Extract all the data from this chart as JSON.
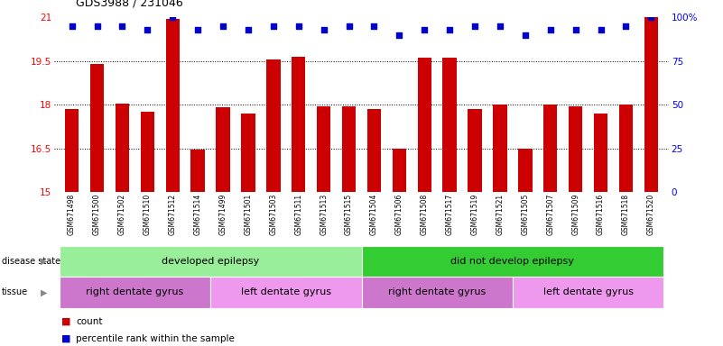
{
  "title": "GDS3988 / 231046",
  "samples": [
    "GSM671498",
    "GSM671500",
    "GSM671502",
    "GSM671510",
    "GSM671512",
    "GSM671514",
    "GSM671499",
    "GSM671501",
    "GSM671503",
    "GSM671511",
    "GSM671513",
    "GSM671515",
    "GSM671504",
    "GSM671506",
    "GSM671508",
    "GSM671517",
    "GSM671519",
    "GSM671521",
    "GSM671505",
    "GSM671507",
    "GSM671509",
    "GSM671516",
    "GSM671518",
    "GSM671520"
  ],
  "bar_values": [
    17.85,
    19.4,
    18.05,
    17.75,
    20.95,
    16.45,
    17.9,
    17.7,
    19.55,
    19.65,
    17.95,
    17.95,
    17.85,
    16.5,
    19.6,
    19.6,
    17.85,
    18.0,
    16.5,
    18.0,
    17.95,
    17.7,
    18.0,
    21.0
  ],
  "percentile_values": [
    95,
    95,
    95,
    93,
    100,
    93,
    95,
    93,
    95,
    95,
    93,
    95,
    95,
    90,
    93,
    93,
    95,
    95,
    90,
    93,
    93,
    93,
    95,
    100
  ],
  "bar_color": "#CC0000",
  "dot_color": "#0000CC",
  "ylim_left": [
    15,
    21
  ],
  "ylim_right": [
    0,
    100
  ],
  "yticks_left": [
    15,
    16.5,
    18,
    19.5,
    21
  ],
  "yticks_right": [
    0,
    25,
    50,
    75,
    100
  ],
  "grid_lines": [
    16.5,
    18.0,
    19.5
  ],
  "disease_state_groups": [
    {
      "label": "developed epilepsy",
      "start": 0,
      "end": 11,
      "color": "#99EE99"
    },
    {
      "label": "did not develop epilepsy",
      "start": 12,
      "end": 23,
      "color": "#33CC33"
    }
  ],
  "tissue_groups": [
    {
      "label": "right dentate gyrus",
      "start": 0,
      "end": 5,
      "color": "#CC77CC"
    },
    {
      "label": "left dentate gyrus",
      "start": 6,
      "end": 11,
      "color": "#EE99EE"
    },
    {
      "label": "right dentate gyrus",
      "start": 12,
      "end": 17,
      "color": "#CC77CC"
    },
    {
      "label": "left dentate gyrus",
      "start": 18,
      "end": 23,
      "color": "#EE99EE"
    }
  ],
  "legend_count_label": "count",
  "legend_pct_label": "percentile rank within the sample",
  "background_color": "#ffffff",
  "disease_state_label": "disease state",
  "tissue_label": "tissue",
  "label_color_arrow": "#888888",
  "xtick_bg": "#cccccc"
}
